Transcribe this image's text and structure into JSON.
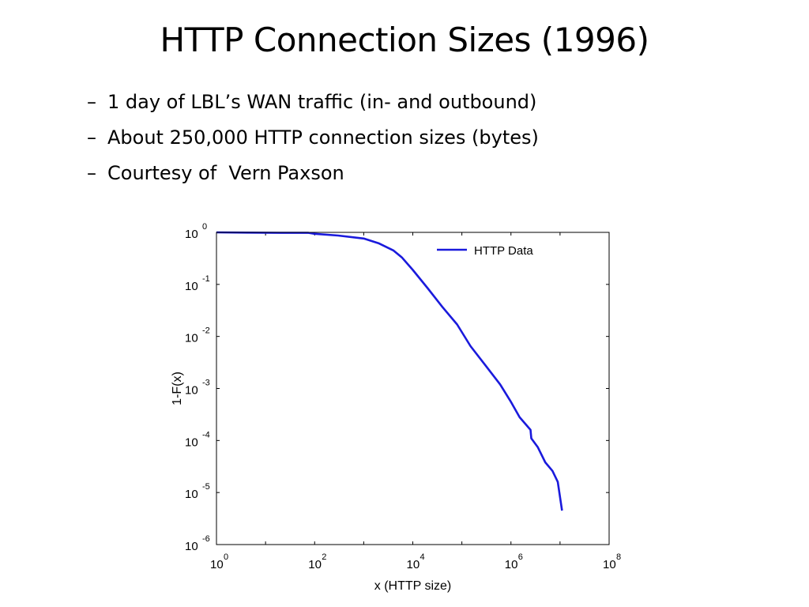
{
  "slide": {
    "title": "HTTP Connection Sizes (1996)",
    "bullet_marker": "–",
    "bullets": [
      "1 day of LBL’s WAN traffic (in- and outbound)",
      "About 250,000 HTTP connection sizes (bytes)",
      "Courtesy of  Vern Paxson"
    ]
  },
  "chart_data": {
    "type": "line",
    "title": "",
    "xlabel": "x (HTTP size)",
    "ylabel": "1-F(x)",
    "x_scale": "log",
    "y_scale": "log",
    "xlim": [
      1,
      100000000
    ],
    "ylim": [
      1e-06,
      1
    ],
    "grid": false,
    "legend_position": "top-right",
    "x_ticks": [
      {
        "base": "10",
        "exp": "0"
      },
      {
        "base": "10",
        "exp": "2"
      },
      {
        "base": "10",
        "exp": "4"
      },
      {
        "base": "10",
        "exp": "6"
      },
      {
        "base": "10",
        "exp": "8"
      }
    ],
    "y_ticks": [
      {
        "base": "10",
        "exp": "0"
      },
      {
        "base": "10",
        "exp": "-1"
      },
      {
        "base": "10",
        "exp": "-2"
      },
      {
        "base": "10",
        "exp": "-3"
      },
      {
        "base": "10",
        "exp": "-4"
      },
      {
        "base": "10",
        "exp": "-5"
      },
      {
        "base": "10",
        "exp": "-6"
      }
    ],
    "series": [
      {
        "name": "HTTP Data",
        "color": "#1a1adc",
        "points": [
          [
            1,
            1.0
          ],
          [
            4,
            0.99
          ],
          [
            20,
            0.98
          ],
          [
            75,
            0.98
          ],
          [
            100,
            0.94
          ],
          [
            300,
            0.87
          ],
          [
            1000,
            0.76
          ],
          [
            2000,
            0.62
          ],
          [
            4000,
            0.45
          ],
          [
            6000,
            0.33
          ],
          [
            10000,
            0.19
          ],
          [
            20000,
            0.085
          ],
          [
            40000,
            0.037
          ],
          [
            80000,
            0.017
          ],
          [
            150000,
            0.0065
          ],
          [
            300000,
            0.0028
          ],
          [
            600000,
            0.0012
          ],
          [
            1000000,
            0.00055
          ],
          [
            1500000,
            0.00028
          ],
          [
            2500000,
            0.00016
          ],
          [
            2600000,
            0.00011
          ],
          [
            3500000,
            7.5e-05
          ],
          [
            5000000,
            3.8e-05
          ],
          [
            7000000,
            2.6e-05
          ],
          [
            9000000,
            1.6e-05
          ],
          [
            11000000,
            4.5e-06
          ]
        ]
      }
    ]
  }
}
